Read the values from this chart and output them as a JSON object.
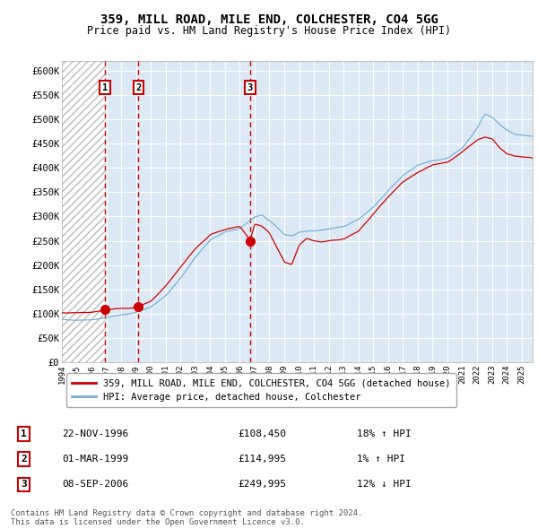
{
  "title": "359, MILL ROAD, MILE END, COLCHESTER, CO4 5GG",
  "subtitle": "Price paid vs. HM Land Registry's House Price Index (HPI)",
  "background_color": "#ffffff",
  "plot_bg_color": "#dce9f5",
  "grid_color": "#ffffff",
  "red_line_color": "#cc0000",
  "blue_line_color": "#7ab0d4",
  "sale_marker_color": "#cc0000",
  "dashed_line_color": "#cc0000",
  "transactions": [
    {
      "date": "22-NOV-1996",
      "price": 108450,
      "price_str": "£108,450",
      "label": "1",
      "pct": "18%",
      "direction": "↑",
      "x_year": 1996.9
    },
    {
      "date": "01-MAR-1999",
      "price": 114995,
      "price_str": "£114,995",
      "label": "2",
      "pct": "1%",
      "direction": "↑",
      "x_year": 1999.17
    },
    {
      "date": "08-SEP-2006",
      "price": 249995,
      "price_str": "£249,995",
      "label": "3",
      "pct": "12%",
      "direction": "↓",
      "x_year": 2006.69
    }
  ],
  "legend_entries": [
    "359, MILL ROAD, MILE END, COLCHESTER, CO4 5GG (detached house)",
    "HPI: Average price, detached house, Colchester"
  ],
  "footer_lines": [
    "Contains HM Land Registry data © Crown copyright and database right 2024.",
    "This data is licensed under the Open Government Licence v3.0."
  ],
  "ylim": [
    0,
    620000
  ],
  "yticks": [
    0,
    50000,
    100000,
    150000,
    200000,
    250000,
    300000,
    350000,
    400000,
    450000,
    500000,
    550000,
    600000
  ],
  "ytick_labels": [
    "£0",
    "£50K",
    "£100K",
    "£150K",
    "£200K",
    "£250K",
    "£300K",
    "£350K",
    "£400K",
    "£450K",
    "£500K",
    "£550K",
    "£600K"
  ],
  "xlim_start": 1994.0,
  "xlim_end": 2025.75,
  "xtick_years": [
    1994,
    1995,
    1996,
    1997,
    1998,
    1999,
    2000,
    2001,
    2002,
    2003,
    2004,
    2005,
    2006,
    2007,
    2008,
    2009,
    2010,
    2011,
    2012,
    2013,
    2014,
    2015,
    2016,
    2017,
    2018,
    2019,
    2020,
    2021,
    2022,
    2023,
    2024,
    2025
  ]
}
